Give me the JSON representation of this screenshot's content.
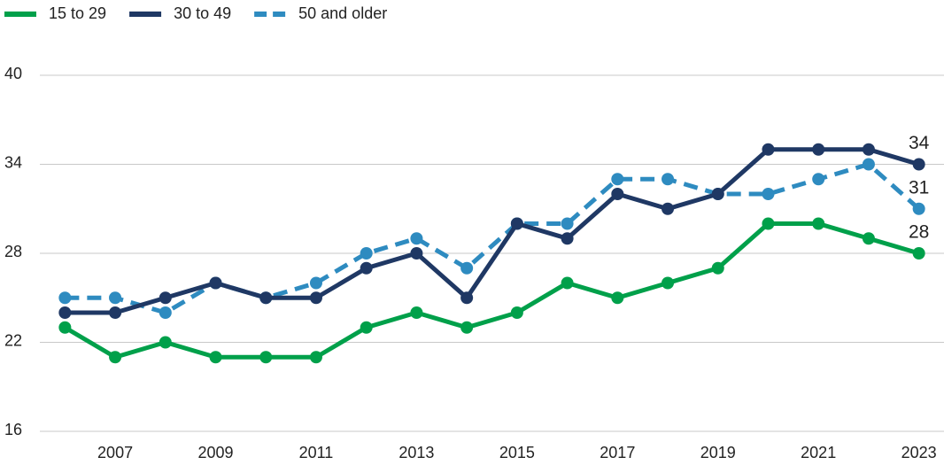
{
  "chart_data": {
    "type": "line",
    "x": [
      2006,
      2007,
      2008,
      2009,
      2010,
      2011,
      2012,
      2013,
      2014,
      2015,
      2016,
      2017,
      2018,
      2019,
      2020,
      2021,
      2022,
      2023
    ],
    "series": [
      {
        "name": "15 to 29",
        "color": "#00a04a",
        "style": "solid",
        "values": [
          23,
          21,
          22,
          21,
          21,
          21,
          23,
          24,
          23,
          24,
          26,
          25,
          26,
          27,
          30,
          30,
          29,
          28
        ]
      },
      {
        "name": "30 to 49",
        "color": "#1f3864",
        "style": "solid",
        "values": [
          24,
          24,
          25,
          26,
          25,
          25,
          27,
          28,
          25,
          30,
          29,
          32,
          31,
          32,
          35,
          35,
          35,
          34
        ]
      },
      {
        "name": "50 and older",
        "color": "#2e8bc0",
        "style": "dashed",
        "values": [
          25,
          25,
          24,
          26,
          25,
          26,
          28,
          29,
          27,
          30,
          30,
          33,
          33,
          32,
          32,
          33,
          34,
          31
        ]
      }
    ],
    "xlim": [
      2005.5,
      2023.5
    ],
    "xticks": [
      2007,
      2009,
      2011,
      2013,
      2015,
      2017,
      2019,
      2021,
      2023
    ],
    "ylim": [
      16,
      40
    ],
    "yticks": [
      16,
      22,
      28,
      34,
      40
    ],
    "grid": true,
    "legend": "top-left",
    "end_labels": true
  }
}
